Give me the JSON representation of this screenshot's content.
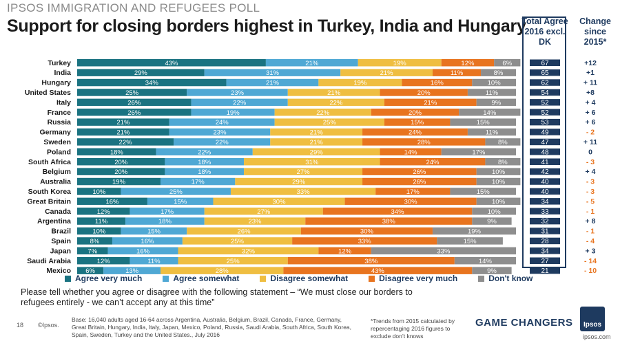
{
  "header": {
    "kicker": "IPSOS IMMIGRATION AND REFUGEES POLL",
    "title": "Support for closing borders highest in Turkey, India and Hungary",
    "total_header": "Total Agree 2016 excl. DK",
    "change_header": "Change since 2015*"
  },
  "colors": {
    "agree_very_much": "#1a7381",
    "agree_somewhat": "#4fa8d4",
    "disagree_somewhat": "#efbe41",
    "disagree_very_much": "#e8741f",
    "dont_know": "#8e8e8e",
    "navy": "#1e3a5f",
    "change_negative": "#e8741f"
  },
  "chart_data": {
    "type": "bar",
    "orientation": "horizontal-stacked-100",
    "categories": [
      "Turkey",
      "India",
      "Hungary",
      "United States",
      "Italy",
      "France",
      "Russia",
      "Germany",
      "Sweden",
      "Poland",
      "South Africa",
      "Belgium",
      "Australia",
      "South Korea",
      "Great Britain",
      "Canada",
      "Argentina",
      "Brazil",
      "Spain",
      "Japan",
      "Saudi Arabia",
      "Mexico"
    ],
    "series": [
      {
        "name": "Agree very much",
        "values": [
          43,
          29,
          34,
          25,
          26,
          26,
          21,
          21,
          22,
          18,
          20,
          20,
          19,
          10,
          16,
          12,
          11,
          10,
          8,
          7,
          12,
          6
        ]
      },
      {
        "name": "Agree somewhat",
        "values": [
          21,
          31,
          21,
          23,
          22,
          19,
          24,
          23,
          22,
          22,
          18,
          18,
          17,
          25,
          15,
          17,
          18,
          15,
          16,
          16,
          11,
          13
        ]
      },
      {
        "name": "Disagree somewhat",
        "values": [
          19,
          21,
          19,
          21,
          22,
          22,
          25,
          21,
          21,
          29,
          31,
          27,
          29,
          33,
          30,
          27,
          23,
          26,
          25,
          32,
          25,
          28
        ]
      },
      {
        "name": "Disagree very much",
        "values": [
          12,
          11,
          16,
          20,
          21,
          20,
          15,
          24,
          28,
          14,
          24,
          26,
          26,
          17,
          30,
          34,
          38,
          30,
          33,
          12,
          38,
          43
        ]
      },
      {
        "name": "Don't know",
        "values": [
          6,
          8,
          10,
          11,
          9,
          14,
          15,
          11,
          8,
          17,
          8,
          10,
          10,
          15,
          10,
          10,
          9,
          19,
          15,
          33,
          14,
          9
        ]
      }
    ],
    "total_agree": [
      "67",
      "65",
      "62",
      "54",
      "52",
      "52",
      "53",
      "49",
      "47",
      "48",
      "41",
      "42",
      "40",
      "40",
      "34",
      "33",
      "32",
      "31",
      "28",
      "34",
      "27",
      "21"
    ],
    "change": [
      "+12",
      "+1",
      "+ 11",
      "+8",
      "+ 4",
      "+ 6",
      "+ 6",
      "- 2",
      "+ 11",
      "0",
      "- 3",
      "+ 4",
      "- 3",
      "- 3",
      "- 5",
      "- 1",
      "+ 8",
      "- 1",
      "- 4",
      "+ 3",
      "- 14",
      "- 10"
    ],
    "xlim": [
      0,
      100
    ],
    "legend": [
      "Agree very much",
      "Agree somewhat",
      "Disagree somewhat",
      "Disagree very much",
      "Don't know"
    ],
    "legend_position": "bottom"
  },
  "question": "Please tell whether you agree or disagree with the following statement – “We must close our borders to refugees entirely - we can’t accept any at this time”",
  "footer": {
    "page_number": "18",
    "copyright": "©Ipsos.",
    "base_note": "Base: 16,040 adults aged 16-64 across  Argentina, Australia, Belgium, Brazil, Canada, France, Germany, Great Britain, Hungary, India, Italy, Japan, Mexico, Poland, Russia, Saudi Arabia, South Africa, South Korea, Spain, Sweden, Turkey and the United States., July 2016",
    "trend_note": "*Trends from 2015 calculated by repercentaging 2016 figures to exclude don’t knows",
    "game_changers": "GAME CHANGERS",
    "logo_text": "Ipsos",
    "site": "ipsos.com"
  }
}
